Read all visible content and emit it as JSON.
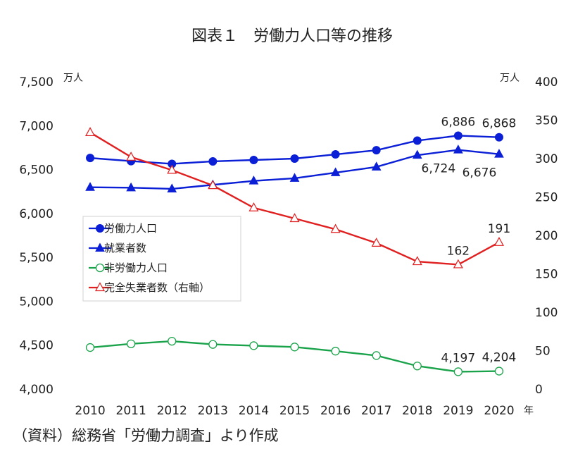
{
  "chart_data": {
    "type": "line",
    "title": "図表１　労働力人口等の推移",
    "x": [
      "2010",
      "2011",
      "2012",
      "2013",
      "2014",
      "2015",
      "2016",
      "2017",
      "2018",
      "2019",
      "2020"
    ],
    "x_unit": "年",
    "y_left": {
      "unit": "万人",
      "range": [
        4000,
        7500
      ],
      "ticks": [
        "4,000",
        "4,500",
        "5,000",
        "5,500",
        "6,000",
        "6,500",
        "7,000",
        "7,500"
      ]
    },
    "y_right": {
      "unit": "万人",
      "range": [
        0,
        400
      ],
      "ticks": [
        "0",
        "50",
        "100",
        "150",
        "200",
        "250",
        "300",
        "350",
        "400"
      ]
    },
    "grid": false,
    "legend_position": "left-middle",
    "series": [
      {
        "name": "労働力人口",
        "axis": "left",
        "color": "#0a1fd6",
        "marker": "circle-filled",
        "values": [
          6632,
          6596,
          6565,
          6593,
          6609,
          6625,
          6673,
          6720,
          6830,
          6886,
          6868
        ]
      },
      {
        "name": "就業者数",
        "axis": "left",
        "color": "#0a1fd6",
        "marker": "triangle-filled",
        "values": [
          6298,
          6293,
          6280,
          6326,
          6371,
          6401,
          6465,
          6530,
          6664,
          6724,
          6676
        ]
      },
      {
        "name": "非労働力人口",
        "axis": "left",
        "color": "#1aa34a",
        "marker": "circle-open",
        "values": [
          4473,
          4515,
          4545,
          4509,
          4494,
          4479,
          4432,
          4382,
          4263,
          4197,
          4204
        ]
      },
      {
        "name": "完全失業者数（右軸）",
        "axis": "right",
        "color": "#e02020",
        "marker": "triangle-open",
        "values": [
          334,
          302,
          285,
          265,
          236,
          222,
          208,
          190,
          166,
          162,
          191
        ]
      }
    ],
    "data_labels": [
      {
        "series": 0,
        "index": 9,
        "text": "6,886",
        "pos": "above"
      },
      {
        "series": 0,
        "index": 10,
        "text": "6,868",
        "pos": "above"
      },
      {
        "series": 1,
        "index": 9,
        "text": "6,724",
        "pos": "below"
      },
      {
        "series": 1,
        "index": 10,
        "text": "6,676",
        "pos": "below"
      },
      {
        "series": 3,
        "index": 9,
        "text": "162",
        "pos": "above"
      },
      {
        "series": 3,
        "index": 10,
        "text": "191",
        "pos": "above"
      },
      {
        "series": 2,
        "index": 9,
        "text": "4,197",
        "pos": "above"
      },
      {
        "series": 2,
        "index": 10,
        "text": "4,204",
        "pos": "above"
      }
    ]
  },
  "source_note": "（資料）総務省「労働力調査」より作成"
}
